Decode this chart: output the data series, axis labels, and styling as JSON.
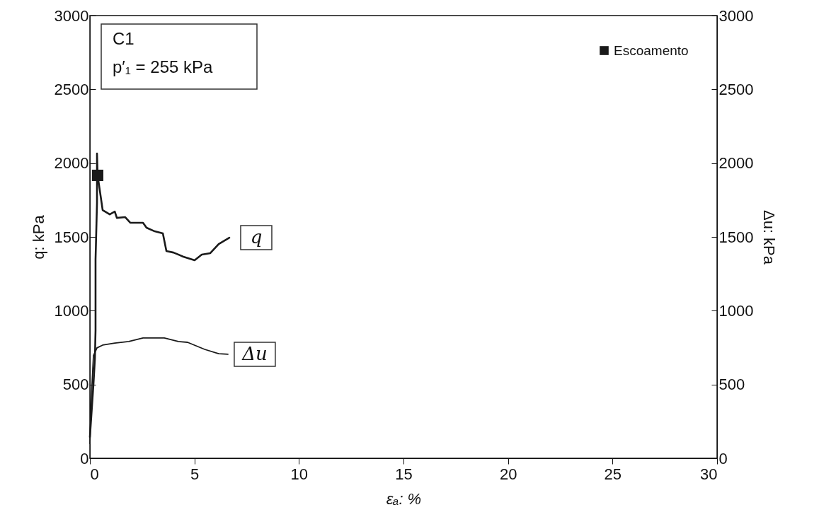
{
  "chart_data": {
    "type": "line",
    "xlabel": "εₐ: %",
    "ylabel": "q: kPa",
    "y2label": "Δu: kPa",
    "xlim": [
      0,
      30
    ],
    "xticks": [
      0,
      5,
      10,
      15,
      20,
      25,
      30
    ],
    "ylim": [
      0,
      3000
    ],
    "yticks": [
      0,
      500,
      1000,
      1500,
      2000,
      2500,
      3000
    ],
    "y2lim": [
      0,
      3000
    ],
    "y2ticks": [
      0,
      500,
      1000,
      1500,
      2000,
      2500,
      3000
    ],
    "grid": false,
    "legend": "top right",
    "annotations": [
      "C1",
      "p′₁ = 255 kPa"
    ],
    "series": [
      {
        "name": "q",
        "type": "line",
        "color": "#1a1a1a",
        "x": [
          0,
          0.07,
          0.17,
          0.24,
          0.27,
          0.27,
          0.34,
          0.34,
          0.37,
          0.61,
          0.95,
          1.19,
          1.29,
          1.69,
          1.93,
          2.2,
          2.54,
          2.71,
          3.1,
          3.49,
          3.66,
          4.0,
          4.47,
          5.01,
          5.35,
          5.76,
          6.16,
          6.67
        ],
        "values": [
          144,
          292,
          503,
          676,
          867,
          1347,
          1730,
          2065,
          1917,
          1682,
          1653,
          1672,
          1629,
          1634,
          1596,
          1596,
          1596,
          1562,
          1538,
          1524,
          1404,
          1394,
          1366,
          1342,
          1380,
          1390,
          1452,
          1495
        ]
      },
      {
        "name": "Δu",
        "type": "line",
        "axis": "y2",
        "color": "#1a1a1a",
        "x": [
          0,
          0.05,
          0.1,
          0.17,
          0.34,
          0.61,
          1.19,
          1.86,
          2.54,
          3.56,
          4.23,
          4.67,
          5.49,
          6.16,
          6.6
        ],
        "values": [
          100,
          300,
          500,
          695,
          748,
          767,
          781,
          791,
          815,
          815,
          791,
          786,
          738,
          709,
          705
        ]
      },
      {
        "name": "Escoamento",
        "type": "scatter",
        "marker": "square",
        "color": "#1a1a1a",
        "x": [
          0.37
        ],
        "values": [
          1917
        ]
      }
    ]
  }
}
